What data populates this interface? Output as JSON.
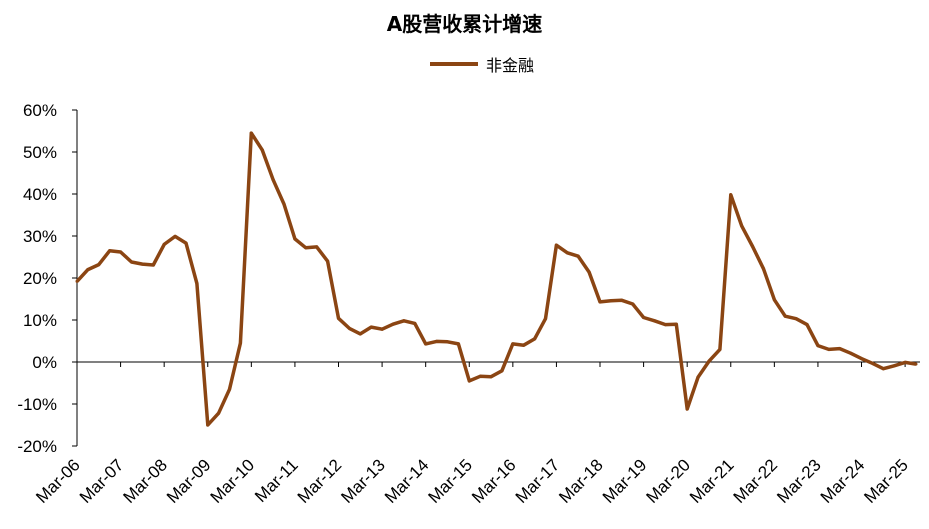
{
  "chart_data": {
    "type": "line",
    "title": "A股营收累计增速",
    "legend_position": "top",
    "ylim": [
      -20,
      60
    ],
    "y_ticks": [
      "60%",
      "50%",
      "40%",
      "30%",
      "20%",
      "10%",
      "0%",
      "-10%",
      "-20%"
    ],
    "y_tick_values": [
      60,
      50,
      40,
      30,
      20,
      10,
      0,
      -10,
      -20
    ],
    "x_ticks": [
      "Mar-06",
      "Mar-07",
      "Mar-08",
      "Mar-09",
      "Mar-10",
      "Mar-11",
      "Mar-12",
      "Mar-13",
      "Mar-14",
      "Mar-15",
      "Mar-16",
      "Mar-17",
      "Mar-18",
      "Mar-19",
      "Mar-20",
      "Mar-21",
      "Mar-22",
      "Mar-23",
      "Mar-24",
      "Mar-25"
    ],
    "series": [
      {
        "name": "非金融",
        "color": "#8B4513",
        "values": [
          19.2,
          22.0,
          23.2,
          26.5,
          26.2,
          23.8,
          23.3,
          23.1,
          28.0,
          29.9,
          28.3,
          18.7,
          -15.0,
          -12.2,
          -6.5,
          4.5,
          54.5,
          50.5,
          43.4,
          37.6,
          29.3,
          27.2,
          27.4,
          24.0,
          10.4,
          8.0,
          6.7,
          8.3,
          7.8,
          9.0,
          9.8,
          9.2,
          4.3,
          4.9,
          4.8,
          4.3,
          -4.5,
          -3.4,
          -3.5,
          -2.1,
          4.3,
          4.0,
          5.5,
          10.3,
          27.8,
          26.0,
          25.2,
          21.4,
          14.3,
          14.6,
          14.7,
          13.8,
          10.6,
          9.8,
          8.9,
          9.0,
          -11.2,
          -3.6,
          0.2,
          3.0,
          39.8,
          32.4,
          27.5,
          22.2,
          14.8,
          10.9,
          10.3,
          8.9,
          3.9,
          3.0,
          3.2,
          2.1,
          0.8,
          -0.3,
          -1.6,
          -0.9,
          -0.1,
          -0.5
        ]
      }
    ]
  }
}
